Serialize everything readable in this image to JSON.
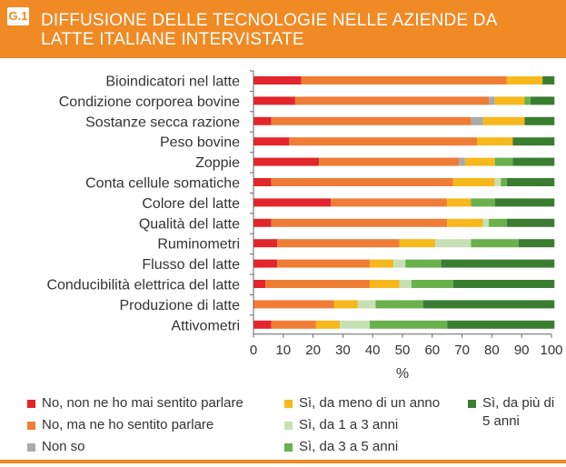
{
  "figure_label": "G.1",
  "title": "DIFFUSIONE DELLE TECNOLOGIE NELLE AZIENDE DA LATTE ITALIANE INTERVISTATE",
  "chart_data": {
    "type": "bar",
    "orientation": "horizontal",
    "stacked": true,
    "title": "DIFFUSIONE DELLE TECNOLOGIE NELLE AZIENDE DA LATTE ITALIANE INTERVISTATE",
    "xlabel": "%",
    "ylabel": "",
    "xlim": [
      0,
      100
    ],
    "xticks": [
      0,
      10,
      20,
      30,
      40,
      50,
      60,
      70,
      80,
      90,
      100
    ],
    "grid": false,
    "legend_position": "bottom",
    "categories": [
      "Bioindicatori nel latte",
      "Condizione corporea bovine",
      "Sostanze secca razione",
      "Peso bovine",
      "Zoppie",
      "Conta cellule somatiche",
      "Colore del latte",
      "Qualità del latte",
      "Ruminometri",
      "Flusso del latte",
      "Conducibilità elettrica del latte",
      "Produzione di latte",
      "Attivometri"
    ],
    "series": [
      {
        "name": "No, non ne ho mai sentito parlare",
        "color": "#e2262b",
        "values": [
          16,
          14,
          6,
          12,
          22,
          6,
          26,
          6,
          8,
          8,
          4,
          0,
          6
        ]
      },
      {
        "name": "No, ma ne ho sentito parlare",
        "color": "#ef7d35",
        "values": [
          69,
          65,
          67,
          63,
          47,
          61,
          39,
          59,
          41,
          31,
          35,
          27,
          15
        ]
      },
      {
        "name": "Non so",
        "color": "#a9a9a9",
        "values": [
          0,
          2,
          4,
          0,
          2,
          0,
          0,
          0,
          0,
          0,
          0,
          0,
          0
        ]
      },
      {
        "name": "Sì, da meno di un anno",
        "color": "#f7b81c",
        "values": [
          12,
          10,
          14,
          12,
          10,
          14,
          8,
          12,
          12,
          8,
          10,
          8,
          8
        ]
      },
      {
        "name": "Sì, da 1 a 3 anni",
        "color": "#c6e0b4",
        "values": [
          0,
          0,
          0,
          0,
          0,
          2,
          0,
          2,
          12,
          4,
          4,
          6,
          10
        ]
      },
      {
        "name": "Sì, da 3 a 5 anni",
        "color": "#6ab04c",
        "values": [
          0,
          2,
          0,
          0,
          6,
          2,
          8,
          6,
          16,
          12,
          14,
          16,
          26
        ]
      },
      {
        "name": "Sì, da più di 5 anni",
        "color": "#3a7d31",
        "values": [
          4,
          8,
          10,
          14,
          14,
          16,
          20,
          16,
          12,
          38,
          34,
          44,
          36
        ]
      }
    ]
  },
  "legend": [
    {
      "label": "No, non ne ho mai sentito parlare",
      "color": "#e2262b"
    },
    {
      "label": "No, ma ne ho sentito parlare",
      "color": "#ef7d35"
    },
    {
      "label": "Non so",
      "color": "#a9a9a9"
    },
    {
      "label": "Sì, da meno di un anno",
      "color": "#f7b81c"
    },
    {
      "label": "Sì, da 1 a 3 anni",
      "color": "#c6e0b4"
    },
    {
      "label": "Sì, da 3 a 5 anni",
      "color": "#6ab04c"
    },
    {
      "label": "Sì, da più di 5 anni",
      "color": "#3a7d31"
    }
  ],
  "colors": {
    "accent": "#f08a24"
  }
}
